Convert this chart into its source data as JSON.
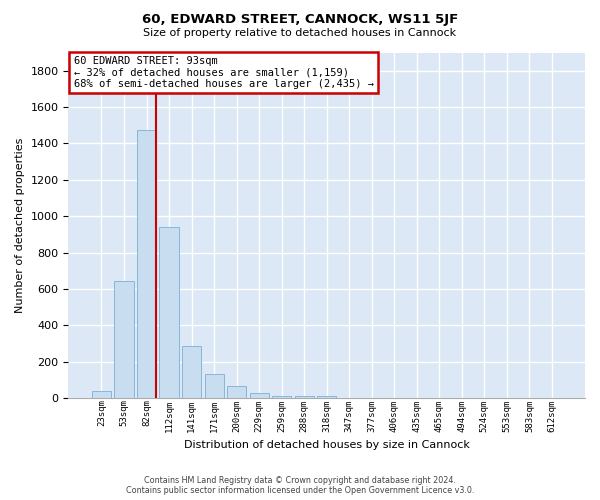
{
  "title": "60, EDWARD STREET, CANNOCK, WS11 5JF",
  "subtitle": "Size of property relative to detached houses in Cannock",
  "xlabel": "Distribution of detached houses by size in Cannock",
  "ylabel": "Number of detached properties",
  "bar_color": "#c8ddf0",
  "bar_edge_color": "#7bafd4",
  "axes_bg": "#dce8f5",
  "fig_bg": "#ffffff",
  "grid_color": "#ffffff",
  "categories": [
    "23sqm",
    "53sqm",
    "82sqm",
    "112sqm",
    "141sqm",
    "171sqm",
    "200sqm",
    "229sqm",
    "259sqm",
    "288sqm",
    "318sqm",
    "347sqm",
    "377sqm",
    "406sqm",
    "435sqm",
    "465sqm",
    "494sqm",
    "524sqm",
    "553sqm",
    "583sqm",
    "612sqm"
  ],
  "values": [
    40,
    645,
    1475,
    940,
    285,
    130,
    65,
    25,
    10,
    10,
    10,
    0,
    0,
    0,
    0,
    0,
    0,
    0,
    0,
    0,
    0
  ],
  "ylim": [
    0,
    1900
  ],
  "yticks": [
    0,
    200,
    400,
    600,
    800,
    1000,
    1200,
    1400,
    1600,
    1800
  ],
  "annotation_line1": "60 EDWARD STREET: 93sqm",
  "annotation_line2": "← 32% of detached houses are smaller (1,159)",
  "annotation_line3": "68% of semi-detached houses are larger (2,435) →",
  "vline_x": 2.42,
  "vline_color": "#cc0000",
  "ann_box_edge": "#cc0000",
  "footer_line1": "Contains HM Land Registry data © Crown copyright and database right 2024.",
  "footer_line2": "Contains public sector information licensed under the Open Government Licence v3.0.",
  "title_fontsize": 9.5,
  "subtitle_fontsize": 8,
  "ylabel_fontsize": 8,
  "xlabel_fontsize": 8,
  "ytick_fontsize": 8,
  "xtick_fontsize": 6.5,
  "ann_fontsize": 7.5,
  "footer_fontsize": 5.8
}
